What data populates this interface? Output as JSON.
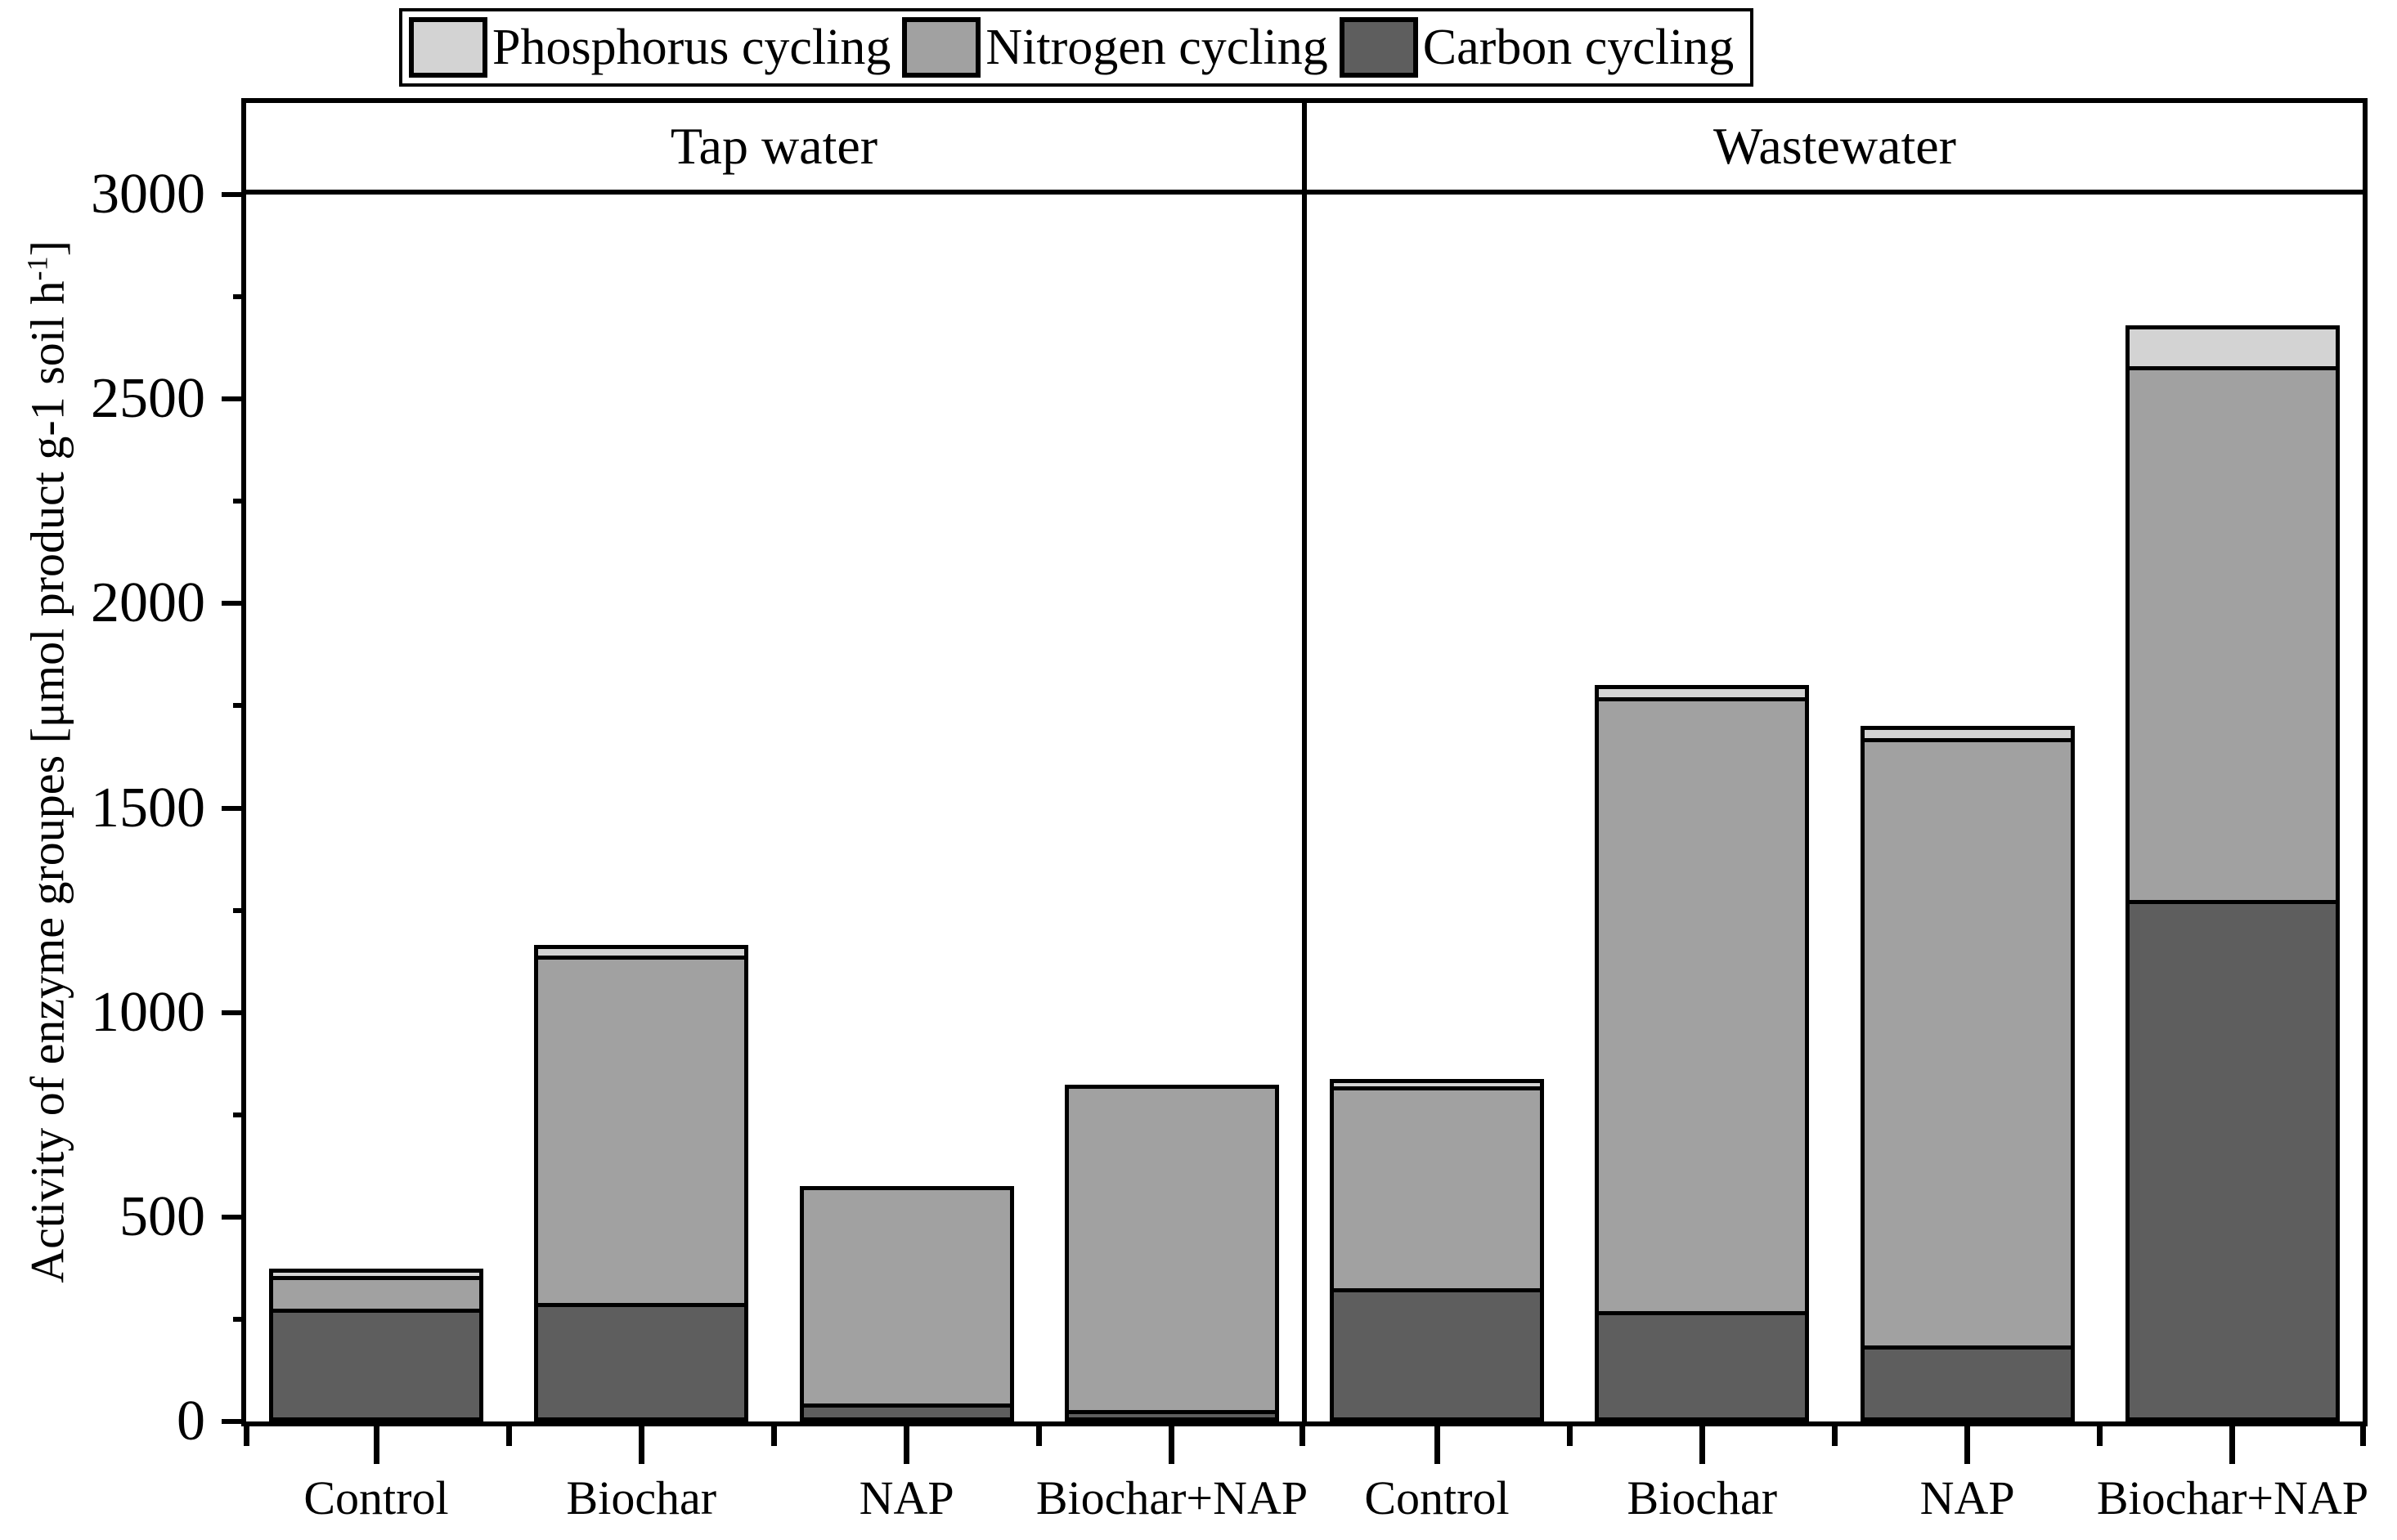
{
  "legend": {
    "items": [
      {
        "label": "Phosphorus cycling",
        "color": "#d3d3d3"
      },
      {
        "label": "Nitrogen cycling",
        "color": "#a1a1a1"
      },
      {
        "label": "Carbon cycling",
        "color": "#5e5e5e"
      }
    ]
  },
  "y_axis": {
    "title_main": "Activity of enzyme groupes [μmol product g-1 soil h",
    "title_sup": "-1",
    "title_close": "]",
    "major_ticks": [
      0,
      500,
      1000,
      1500,
      2000,
      2500,
      3000
    ],
    "minor_step": 250,
    "ylim": [
      0,
      3000
    ]
  },
  "chart_data": {
    "type": "bar",
    "stacked": true,
    "ylabel": "Activity of enzyme groupes [μmol product g-1 soil h-1]",
    "ylim": [
      0,
      3000
    ],
    "grid": false,
    "legend_position": "top",
    "categories": [
      "Control",
      "Biochar",
      "NAP",
      "Biochar+NAP"
    ],
    "panels": [
      {
        "title": "Tap water",
        "categories": [
          "Control",
          "Biochar",
          "NAP",
          "Biochar+NAP"
        ],
        "series": [
          {
            "name": "Carbon cycling",
            "color": "#5e5e5e",
            "values": [
              275,
              290,
              45,
              25
            ]
          },
          {
            "name": "Nitrogen cycling",
            "color": "#a1a1a1",
            "values": [
              90,
              860,
              540,
              805
            ]
          },
          {
            "name": "Phosphorus cycling",
            "color": "#d3d3d3",
            "values": [
              15,
              35,
              0,
              0
            ]
          }
        ],
        "totals": [
          380,
          1185,
          585,
          830
        ]
      },
      {
        "title": "Wastewater",
        "categories": [
          "Control",
          "Biochar",
          "NAP",
          "Biochar+NAP"
        ],
        "series": [
          {
            "name": "Carbon cycling",
            "color": "#5e5e5e",
            "values": [
              325,
              270,
              185,
              1275
            ]
          },
          {
            "name": "Nitrogen cycling",
            "color": "#a1a1a1",
            "values": [
              505,
              1510,
              1495,
              1315
            ]
          },
          {
            "name": "Phosphorus cycling",
            "color": "#d3d3d3",
            "values": [
              20,
              40,
              40,
              110
            ]
          }
        ],
        "totals": [
          850,
          1820,
          1720,
          2700
        ]
      }
    ]
  }
}
